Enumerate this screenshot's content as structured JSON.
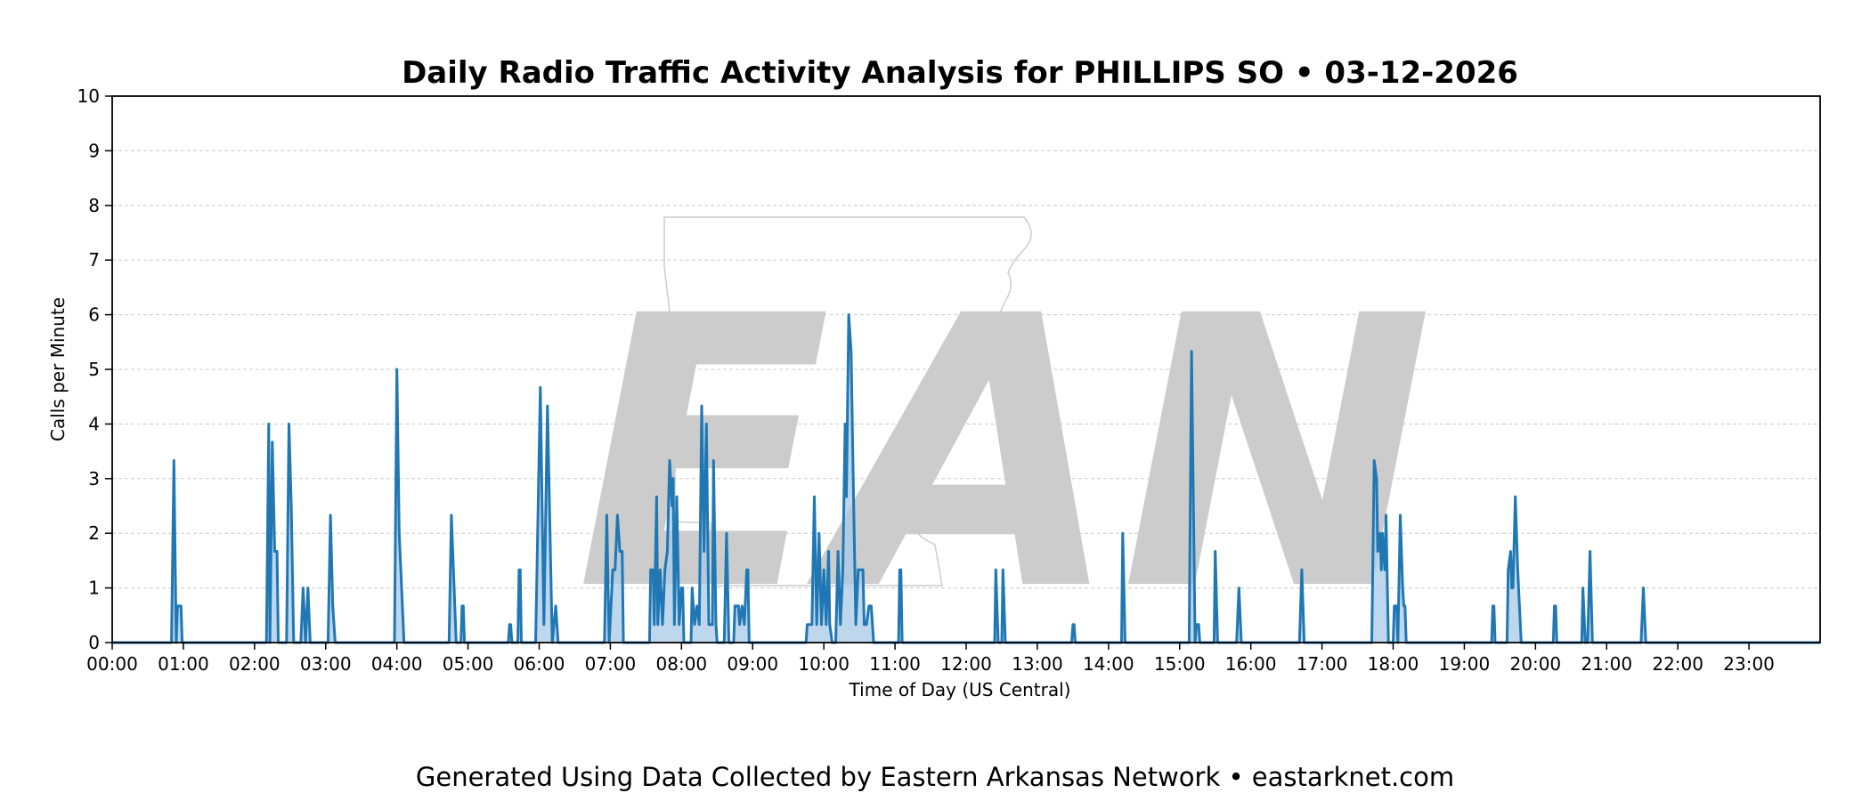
{
  "chart_data": {
    "type": "line",
    "title": "Daily Radio Traffic Activity Analysis for PHILLIPS SO • 03-12-2026",
    "xlabel": "Time of Day (US Central)",
    "ylabel": "Calls per Minute",
    "footer": "Generated Using Data Collected by Eastern Arkansas Network • eastarknet.com",
    "watermark": "EAN",
    "x_unit": "minutes",
    "xlim": [
      0,
      1440
    ],
    "ylim": [
      0,
      10
    ],
    "yticks": [
      0,
      1,
      2,
      3,
      4,
      5,
      6,
      7,
      8,
      9,
      10
    ],
    "xticks": [
      "00:00",
      "01:00",
      "02:00",
      "03:00",
      "04:00",
      "05:00",
      "06:00",
      "07:00",
      "08:00",
      "09:00",
      "10:00",
      "11:00",
      "12:00",
      "13:00",
      "14:00",
      "15:00",
      "16:00",
      "17:00",
      "18:00",
      "19:00",
      "20:00",
      "21:00",
      "22:00",
      "23:00"
    ],
    "grid": true,
    "colors": {
      "line": "#1f77b4",
      "fill": "#a9c9e6",
      "grid": "#cccccc",
      "watermark": "#cccccc"
    },
    "series": [
      {
        "values": [
          [
            0,
            0
          ],
          [
            50,
            0
          ],
          [
            52,
            3.33
          ],
          [
            54,
            0
          ],
          [
            55,
            0.67
          ],
          [
            58,
            0.67
          ],
          [
            59,
            0
          ],
          [
            130,
            0
          ],
          [
            132,
            4.0
          ],
          [
            133,
            0
          ],
          [
            135,
            3.67
          ],
          [
            137,
            1.67
          ],
          [
            139,
            1.67
          ],
          [
            140,
            0
          ],
          [
            147,
            0
          ],
          [
            149,
            4.0
          ],
          [
            151,
            2.5
          ],
          [
            153,
            0
          ],
          [
            159,
            0
          ],
          [
            161,
            1.0
          ],
          [
            163,
            0
          ],
          [
            165,
            1.0
          ],
          [
            167,
            0
          ],
          [
            182,
            0
          ],
          [
            184,
            2.33
          ],
          [
            186,
            0.67
          ],
          [
            188,
            0
          ],
          [
            238,
            0
          ],
          [
            240,
            5.0
          ],
          [
            242,
            2.0
          ],
          [
            246,
            0
          ],
          [
            284,
            0
          ],
          [
            286,
            2.33
          ],
          [
            290,
            0
          ],
          [
            294,
            0
          ],
          [
            295,
            0.67
          ],
          [
            296,
            0.67
          ],
          [
            297,
            0
          ],
          [
            334,
            0
          ],
          [
            335,
            0.33
          ],
          [
            336,
            0.33
          ],
          [
            337,
            0
          ],
          [
            342,
            0
          ],
          [
            343,
            1.33
          ],
          [
            344,
            1.33
          ],
          [
            345,
            0
          ],
          [
            357,
            0
          ],
          [
            361,
            4.67
          ],
          [
            364,
            0.33
          ],
          [
            367,
            4.33
          ],
          [
            371,
            0
          ],
          [
            374,
            0.67
          ],
          [
            376,
            0
          ],
          [
            415,
            0
          ],
          [
            417,
            2.33
          ],
          [
            419,
            0
          ],
          [
            422,
            1.33
          ],
          [
            424,
            1.33
          ],
          [
            426,
            2.33
          ],
          [
            428,
            1.67
          ],
          [
            430,
            1.67
          ],
          [
            431,
            0
          ],
          [
            453,
            0
          ],
          [
            454,
            1.33
          ],
          [
            456,
            1.33
          ],
          [
            457,
            0.33
          ],
          [
            459,
            2.67
          ],
          [
            460,
            0.33
          ],
          [
            462,
            1.33
          ],
          [
            464,
            0.33
          ],
          [
            466,
            1.33
          ],
          [
            468,
            1.67
          ],
          [
            470,
            3.33
          ],
          [
            472,
            2.5
          ],
          [
            473,
            3.0
          ],
          [
            474,
            0.33
          ],
          [
            476,
            2.67
          ],
          [
            478,
            0.33
          ],
          [
            480,
            1.0
          ],
          [
            481,
            1.0
          ],
          [
            482,
            0
          ],
          [
            488,
            0
          ],
          [
            489,
            1.0
          ],
          [
            491,
            0.33
          ],
          [
            493,
            0.67
          ],
          [
            495,
            0.33
          ],
          [
            497,
            4.33
          ],
          [
            499,
            1.67
          ],
          [
            501,
            4.0
          ],
          [
            503,
            0.33
          ],
          [
            506,
            0.33
          ],
          [
            507,
            3.33
          ],
          [
            509,
            0.33
          ],
          [
            510,
            0
          ],
          [
            516,
            0
          ],
          [
            518,
            2.0
          ],
          [
            520,
            0
          ],
          [
            524,
            0
          ],
          [
            525,
            0.67
          ],
          [
            528,
            0.67
          ],
          [
            529,
            0.33
          ],
          [
            531,
            0.67
          ],
          [
            533,
            0.33
          ],
          [
            535,
            1.33
          ],
          [
            536,
            1.33
          ],
          [
            537,
            0
          ],
          [
            585,
            0
          ],
          [
            586,
            0.33
          ],
          [
            588,
            0.33
          ],
          [
            590,
            0.33
          ],
          [
            592,
            2.67
          ],
          [
            594,
            0.33
          ],
          [
            596,
            2.0
          ],
          [
            598,
            0.33
          ],
          [
            600,
            1.33
          ],
          [
            602,
            0.33
          ],
          [
            604,
            1.67
          ],
          [
            605,
            0.33
          ],
          [
            607,
            0
          ],
          [
            610,
            0
          ],
          [
            612,
            1.67
          ],
          [
            614,
            0.33
          ],
          [
            616,
            1.33
          ],
          [
            618,
            4.0
          ],
          [
            619,
            2.67
          ],
          [
            621,
            6.0
          ],
          [
            623,
            5.33
          ],
          [
            625,
            2.67
          ],
          [
            627,
            0.33
          ],
          [
            629,
            1.33
          ],
          [
            631,
            1.33
          ],
          [
            633,
            1.33
          ],
          [
            634,
            0.33
          ],
          [
            636,
            0.33
          ],
          [
            638,
            0.67
          ],
          [
            640,
            0.67
          ],
          [
            642,
            0
          ],
          [
            663,
            0
          ],
          [
            664,
            1.33
          ],
          [
            665,
            1.33
          ],
          [
            666,
            0
          ],
          [
            744,
            0
          ],
          [
            745,
            1.33
          ],
          [
            747,
            0
          ],
          [
            750,
            0
          ],
          [
            751,
            1.33
          ],
          [
            753,
            0
          ],
          [
            809,
            0
          ],
          [
            810,
            0.33
          ],
          [
            811,
            0.33
          ],
          [
            812,
            0
          ],
          [
            851,
            0
          ],
          [
            852,
            2.0
          ],
          [
            854,
            0
          ],
          [
            908,
            0
          ],
          [
            910,
            5.33
          ],
          [
            913,
            0
          ],
          [
            914,
            0.33
          ],
          [
            916,
            0.33
          ],
          [
            917,
            0
          ],
          [
            929,
            0
          ],
          [
            930,
            1.67
          ],
          [
            932,
            0
          ],
          [
            948,
            0
          ],
          [
            950,
            1.0
          ],
          [
            952,
            0
          ],
          [
            1001,
            0
          ],
          [
            1003,
            1.33
          ],
          [
            1005,
            0
          ],
          [
            1062,
            0
          ],
          [
            1064,
            3.33
          ],
          [
            1066,
            3.0
          ],
          [
            1067,
            1.67
          ],
          [
            1069,
            2.0
          ],
          [
            1070,
            1.33
          ],
          [
            1071,
            2.0
          ],
          [
            1073,
            1.33
          ],
          [
            1074,
            2.33
          ],
          [
            1076,
            0
          ],
          [
            1080,
            0
          ],
          [
            1081,
            0.67
          ],
          [
            1083,
            0.67
          ],
          [
            1084,
            0
          ],
          [
            1086,
            2.33
          ],
          [
            1088,
            1.0
          ],
          [
            1089,
            0.67
          ],
          [
            1090,
            0.67
          ],
          [
            1091,
            0
          ],
          [
            1163,
            0
          ],
          [
            1164,
            0.67
          ],
          [
            1165,
            0.67
          ],
          [
            1166,
            0
          ],
          [
            1176,
            0
          ],
          [
            1177,
            1.33
          ],
          [
            1179,
            1.67
          ],
          [
            1180,
            1.0
          ],
          [
            1181,
            1.0
          ],
          [
            1183,
            2.67
          ],
          [
            1185,
            1.33
          ],
          [
            1188,
            0
          ],
          [
            1215,
            0
          ],
          [
            1216,
            0.67
          ],
          [
            1217,
            0.67
          ],
          [
            1218,
            0
          ],
          [
            1239,
            0
          ],
          [
            1240,
            1.0
          ],
          [
            1242,
            0
          ],
          [
            1244,
            0
          ],
          [
            1246,
            1.67
          ],
          [
            1248,
            0
          ],
          [
            1289,
            0
          ],
          [
            1291,
            1.0
          ],
          [
            1293,
            0
          ],
          [
            1440,
            0
          ]
        ]
      }
    ]
  }
}
